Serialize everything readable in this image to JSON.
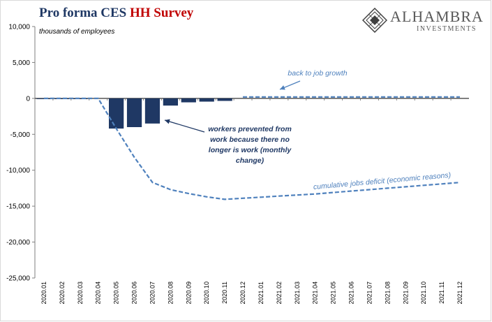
{
  "header": {
    "title_part1": "Pro forma CES ",
    "title_part2": "HH Survey",
    "units": "thousands of employees"
  },
  "logo": {
    "name": "ALHAMBRA",
    "subtitle": "INVESTMENTS"
  },
  "colors": {
    "title": "#1f3864",
    "title_accent": "#c00000",
    "bars": "#1f3864",
    "cumulative_line": "#4f81bd",
    "growth_line": "#4f81bd"
  },
  "annotations": {
    "growth": "back to job growth",
    "workers": "workers prevented from work because there no longer is work (monthly change)",
    "deficit": "cumulative jobs deficit (economic reasons)"
  },
  "chart_data": {
    "type": "bar",
    "categories": [
      "2020.01",
      "2020.02",
      "2020.03",
      "2020.04",
      "2020.05",
      "2020.06",
      "2020.07",
      "2020.08",
      "2020.09",
      "2020.10",
      "2020.11",
      "2020.12",
      "2021.01",
      "2021.02",
      "2021.03",
      "2021.04",
      "2021.05",
      "2021.06",
      "2021.07",
      "2021.08",
      "2021.09",
      "2021.10",
      "2021.11",
      "2021.12"
    ],
    "ylim": [
      -25000,
      10000
    ],
    "yticks": [
      10000,
      5000,
      0,
      -5000,
      -10000,
      -15000,
      -20000,
      -25000
    ],
    "ytick_labels": [
      "10,000",
      "5,000",
      "0",
      "-5,000",
      "-10,000",
      "-15,000",
      "-20,000",
      "-25,000"
    ],
    "grid": false,
    "legend": "none",
    "series": [
      {
        "type": "bar",
        "values": [
          -50,
          -50,
          -50,
          0,
          -4200,
          -4000,
          -3500,
          -1000,
          -550,
          -450,
          -350,
          0,
          0,
          0,
          0,
          0,
          0,
          0,
          0,
          0,
          0,
          0,
          0,
          0
        ]
      },
      {
        "type": "line",
        "style": "dashed",
        "values": [
          0,
          0,
          0,
          0,
          -4200,
          -8200,
          -11700,
          -12700,
          -13250,
          -13700,
          -14050,
          -13900,
          -13750,
          -13600,
          -13450,
          -13300,
          -13100,
          -12900,
          -12700,
          -12500,
          -12300,
          -12100,
          -11900,
          -11700
        ]
      },
      {
        "type": "line",
        "style": "dashed",
        "values": [
          null,
          null,
          null,
          null,
          null,
          null,
          null,
          null,
          null,
          null,
          null,
          200,
          200,
          200,
          200,
          200,
          200,
          200,
          200,
          200,
          200,
          200,
          200,
          200
        ]
      }
    ]
  }
}
